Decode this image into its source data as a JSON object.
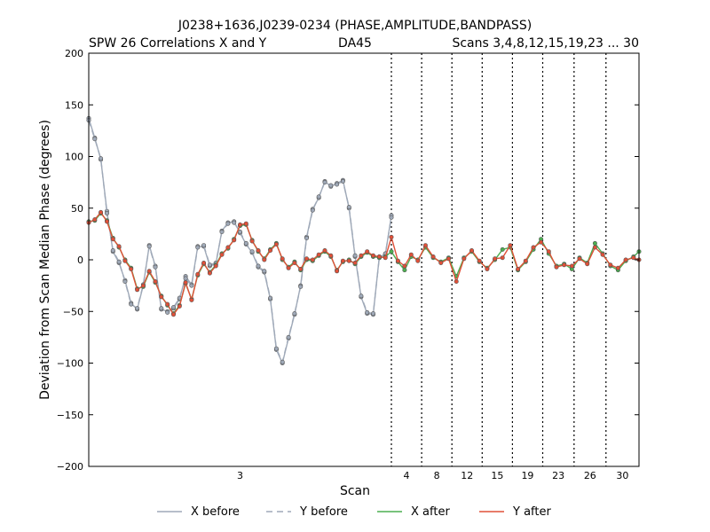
{
  "chart_data": {
    "type": "line",
    "title": "J0238+1636,J0239-0234 (PHASE,AMPLITUDE,BANDPASS)",
    "subtitle_left": "SPW 26 Correlations X and Y",
    "subtitle_center": "DA45",
    "subtitle_right": "Scans 3,4,8,12,15,19,23 ... 30",
    "xlabel": "Scan",
    "ylabel": "Deviation from Scan Median Phase (degrees)",
    "ylim": [
      -200,
      200
    ],
    "yticks": [
      -200,
      -150,
      -100,
      -50,
      0,
      50,
      100,
      150,
      200
    ],
    "ytick_labels": [
      "−200",
      "−150",
      "−100",
      "−50",
      "0",
      "50",
      "100",
      "150",
      "200"
    ],
    "xlim": [
      0,
      100
    ],
    "grid": false,
    "legend_position": "bottom-center",
    "scans": [
      {
        "label": "3",
        "start": 0,
        "end": 55
      },
      {
        "label": "4",
        "start": 55,
        "end": 60.5
      },
      {
        "label": "8",
        "start": 60.5,
        "end": 66
      },
      {
        "label": "12",
        "start": 66,
        "end": 71.5
      },
      {
        "label": "15",
        "start": 71.5,
        "end": 77
      },
      {
        "label": "19",
        "start": 77,
        "end": 82.5
      },
      {
        "label": "23",
        "start": 82.5,
        "end": 88.2
      },
      {
        "label": "26",
        "start": 88.2,
        "end": 94
      },
      {
        "label": "30",
        "start": 94,
        "end": 100
      }
    ],
    "boundaries": [
      55,
      60.5,
      66,
      71.5,
      77,
      82.5,
      88.2,
      94
    ],
    "series": [
      {
        "name": "X before",
        "color": "#9fa9b8",
        "dash": "solid",
        "markers": true,
        "x": [
          0.0,
          1.1,
          2.2,
          3.3,
          4.4,
          5.5,
          6.6,
          7.7,
          8.8,
          9.9,
          11.0,
          12.1,
          13.2,
          14.3,
          15.4,
          16.5,
          17.6,
          18.7,
          19.8,
          20.9,
          22.0,
          23.1,
          24.2,
          25.3,
          26.4,
          27.5,
          28.6,
          29.7,
          30.8,
          31.9,
          33.0,
          34.1,
          35.2,
          36.3,
          37.4,
          38.5,
          39.6,
          40.7,
          41.8,
          42.9,
          44.0,
          45.1,
          46.2,
          47.3,
          48.4,
          49.5,
          50.6,
          51.7,
          52.8,
          53.9,
          55.0
        ],
        "values": [
          137,
          118,
          97,
          47,
          8,
          -3,
          -20,
          -42,
          -48,
          -25,
          14,
          -6,
          -48,
          -50,
          -47,
          -38,
          -16,
          -24,
          13,
          13,
          -6,
          -4,
          28,
          36,
          37,
          26,
          15,
          7,
          -7,
          -12,
          -38,
          -87,
          -100,
          -76,
          -53,
          -25,
          22,
          49,
          60,
          76,
          71,
          74,
          77,
          50,
          3,
          -36,
          -52,
          -53,
          3,
          5,
          43
        ]
      },
      {
        "name": "Y before",
        "color": "#9fa9b8",
        "dash": "dashed",
        "markers": true,
        "x": [
          0.0,
          1.1,
          2.2,
          3.3,
          4.4,
          5.5,
          6.6,
          7.7,
          8.8,
          9.9,
          11.0,
          12.1,
          13.2,
          14.3,
          15.4,
          16.5,
          17.6,
          18.7,
          19.8,
          20.9,
          22.0,
          23.1,
          24.2,
          25.3,
          26.4,
          27.5,
          28.6,
          29.7,
          30.8,
          31.9,
          33.0,
          34.1,
          35.2,
          36.3,
          37.4,
          38.5,
          39.6,
          40.7,
          41.8,
          42.9,
          44.0,
          45.1,
          46.2,
          47.3,
          48.4,
          49.5,
          50.6,
          51.7,
          52.8,
          53.9,
          55.0
        ],
        "values": [
          135,
          117,
          98,
          45,
          9,
          -2,
          -21,
          -43,
          -47,
          -24,
          13,
          -7,
          -47,
          -51,
          -46,
          -37,
          -18,
          -25,
          12,
          14,
          -5,
          -3,
          27,
          35,
          36,
          27,
          16,
          8,
          -6,
          -11,
          -37,
          -86,
          -99,
          -75,
          -52,
          -26,
          21,
          48,
          61,
          75,
          72,
          73,
          76,
          51,
          4,
          -35,
          -51,
          -52,
          2,
          6,
          41
        ]
      },
      {
        "name": "X after",
        "color": "#4caf50",
        "dash": "solid",
        "markers": true,
        "x": [
          0.0,
          1.1,
          2.2,
          3.3,
          4.4,
          5.5,
          6.6,
          7.7,
          8.8,
          9.9,
          11.0,
          12.1,
          13.2,
          14.3,
          15.4,
          16.5,
          17.6,
          18.7,
          19.8,
          20.9,
          22.0,
          23.1,
          24.2,
          25.3,
          26.4,
          27.5,
          28.6,
          29.7,
          30.8,
          31.9,
          33.0,
          34.1,
          35.2,
          36.3,
          37.4,
          38.5,
          39.6,
          40.7,
          41.8,
          42.9,
          44.0,
          45.1,
          46.2,
          47.3,
          48.4,
          49.5,
          50.6,
          51.7,
          52.8,
          53.9,
          55.0,
          56.2,
          57.4,
          58.6,
          59.8,
          61.2,
          62.6,
          64.0,
          65.4,
          66.8,
          68.2,
          69.6,
          71.0,
          72.4,
          73.8,
          75.2,
          76.6,
          78.0,
          79.4,
          80.8,
          82.2,
          83.6,
          85.0,
          86.4,
          87.8,
          89.2,
          90.6,
          92.0,
          93.4,
          94.8,
          96.2,
          97.6,
          99.0,
          100.0
        ],
        "values": [
          37,
          38,
          45,
          38,
          21,
          12,
          0,
          -8,
          -28,
          -26,
          -12,
          -22,
          -35,
          -44,
          -52,
          -44,
          -23,
          -38,
          -15,
          -4,
          -12,
          -5,
          6,
          11,
          20,
          33,
          34,
          19,
          8,
          1,
          10,
          16,
          0,
          -7,
          -2,
          -10,
          0,
          -1,
          4,
          8,
          3,
          -10,
          -2,
          0,
          -4,
          3,
          7,
          3,
          2,
          3,
          8,
          -2,
          -10,
          3,
          0,
          12,
          2,
          -2,
          2,
          -16,
          2,
          8,
          -2,
          -8,
          0,
          10,
          12,
          -10,
          -2,
          10,
          20,
          6,
          -6,
          -4,
          -9,
          2,
          -3,
          16,
          6,
          -6,
          -10,
          -1,
          3,
          8
        ]
      },
      {
        "name": "Y after",
        "color": "#e05038",
        "dash": "solid",
        "markers": true,
        "x": [
          0.0,
          1.1,
          2.2,
          3.3,
          4.4,
          5.5,
          6.6,
          7.7,
          8.8,
          9.9,
          11.0,
          12.1,
          13.2,
          14.3,
          15.4,
          16.5,
          17.6,
          18.7,
          19.8,
          20.9,
          22.0,
          23.1,
          24.2,
          25.3,
          26.4,
          27.5,
          28.6,
          29.7,
          30.8,
          31.9,
          33.0,
          34.1,
          35.2,
          36.3,
          37.4,
          38.5,
          39.6,
          40.7,
          41.8,
          42.9,
          44.0,
          45.1,
          46.2,
          47.3,
          48.4,
          49.5,
          50.6,
          51.7,
          52.8,
          53.9,
          55.0,
          56.2,
          57.4,
          58.6,
          59.8,
          61.2,
          62.6,
          64.0,
          65.4,
          66.8,
          68.2,
          69.6,
          71.0,
          72.4,
          73.8,
          75.2,
          76.6,
          78.0,
          79.4,
          80.8,
          82.2,
          83.6,
          85.0,
          86.4,
          87.8,
          89.2,
          90.6,
          92.0,
          93.4,
          94.8,
          96.2,
          97.6,
          99.0,
          100.0
        ],
        "values": [
          36,
          39,
          46,
          37,
          20,
          13,
          -1,
          -9,
          -29,
          -25,
          -11,
          -21,
          -36,
          -43,
          -53,
          -45,
          -22,
          -39,
          -14,
          -3,
          -13,
          -6,
          5,
          12,
          19,
          34,
          35,
          18,
          9,
          0,
          9,
          15,
          1,
          -8,
          -3,
          -9,
          1,
          0,
          5,
          9,
          4,
          -11,
          -1,
          -1,
          -3,
          4,
          8,
          4,
          3,
          2,
          22,
          -1,
          -6,
          5,
          -1,
          14,
          3,
          -3,
          1,
          -21,
          1,
          9,
          -1,
          -9,
          1,
          2,
          14,
          -9,
          -1,
          12,
          17,
          8,
          -7,
          -5,
          -6,
          1,
          -4,
          12,
          5,
          -5,
          -8,
          0,
          2,
          0
        ]
      }
    ],
    "legend": [
      {
        "label": "X before",
        "color": "#9fa9b8",
        "dash": "solid"
      },
      {
        "label": "Y before",
        "color": "#9fa9b8",
        "dash": "dashed"
      },
      {
        "label": "X after",
        "color": "#4caf50",
        "dash": "solid"
      },
      {
        "label": "Y after",
        "color": "#e05038",
        "dash": "solid"
      }
    ]
  }
}
